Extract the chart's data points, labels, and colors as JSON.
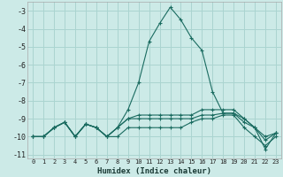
{
  "xlabel": "Humidex (Indice chaleur)",
  "background_color": "#cceae7",
  "grid_color": "#aad4d0",
  "line_color": "#1a6b60",
  "xlim": [
    -0.5,
    23.5
  ],
  "ylim": [
    -11.2,
    -2.5
  ],
  "yticks": [
    -11,
    -10,
    -9,
    -8,
    -7,
    -6,
    -5,
    -4,
    -3
  ],
  "xticks": [
    0,
    1,
    2,
    3,
    4,
    5,
    6,
    7,
    8,
    9,
    10,
    11,
    12,
    13,
    14,
    15,
    16,
    17,
    18,
    19,
    20,
    21,
    22,
    23
  ],
  "lines": [
    {
      "x": [
        0,
        1,
        2,
        3,
        4,
        5,
        6,
        7,
        8,
        9,
        10,
        11,
        12,
        13,
        14,
        15,
        16,
        17,
        18,
        19,
        20,
        21,
        22,
        23
      ],
      "y": [
        -10.0,
        -10.0,
        -9.5,
        -9.2,
        -10.0,
        -9.3,
        -9.5,
        -10.0,
        -9.5,
        -8.5,
        -7.0,
        -4.7,
        -3.7,
        -2.8,
        -3.5,
        -4.5,
        -5.2,
        -7.5,
        -8.7,
        -8.7,
        -9.0,
        -9.5,
        -10.7,
        -9.8
      ]
    },
    {
      "x": [
        0,
        1,
        2,
        3,
        4,
        5,
        6,
        7,
        8,
        9,
        10,
        11,
        12,
        13,
        14,
        15,
        16,
        17,
        18,
        19,
        20,
        21,
        22,
        23
      ],
      "y": [
        -10.0,
        -10.0,
        -9.5,
        -9.2,
        -10.0,
        -9.3,
        -9.5,
        -10.0,
        -9.5,
        -9.0,
        -8.8,
        -8.8,
        -8.8,
        -8.8,
        -8.8,
        -8.8,
        -8.5,
        -8.5,
        -8.5,
        -8.5,
        -9.0,
        -9.5,
        -10.0,
        -9.8
      ]
    },
    {
      "x": [
        0,
        1,
        2,
        3,
        4,
        5,
        6,
        7,
        8,
        9,
        10,
        11,
        12,
        13,
        14,
        15,
        16,
        17,
        18,
        19,
        20,
        21,
        22,
        23
      ],
      "y": [
        -10.0,
        -10.0,
        -9.5,
        -9.2,
        -10.0,
        -9.3,
        -9.5,
        -10.0,
        -9.5,
        -9.0,
        -9.0,
        -9.0,
        -9.0,
        -9.0,
        -9.0,
        -9.0,
        -8.8,
        -8.8,
        -8.7,
        -8.7,
        -9.2,
        -9.5,
        -10.2,
        -9.8
      ]
    },
    {
      "x": [
        0,
        1,
        2,
        3,
        4,
        5,
        6,
        7,
        8,
        9,
        10,
        11,
        12,
        13,
        14,
        15,
        16,
        17,
        18,
        19,
        20,
        21,
        22,
        23
      ],
      "y": [
        -10.0,
        -10.0,
        -9.5,
        -9.2,
        -10.0,
        -9.3,
        -9.5,
        -10.0,
        -10.0,
        -9.5,
        -9.5,
        -9.5,
        -9.5,
        -9.5,
        -9.5,
        -9.2,
        -9.0,
        -9.0,
        -8.8,
        -8.8,
        -9.5,
        -10.0,
        -10.5,
        -10.0
      ]
    }
  ]
}
